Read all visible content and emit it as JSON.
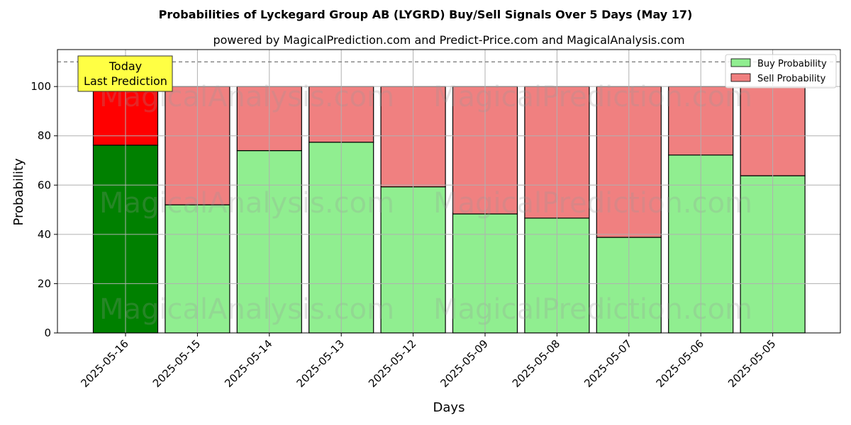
{
  "chart_data": {
    "type": "bar",
    "stacked": true,
    "title": "Probabilities of Lyckegard Group AB (LYGRD) Buy/Sell Signals Over 5 Days (May 17)",
    "subtitle": "powered by MagicalPrediction.com and Predict-Price.com and MagicalAnalysis.com",
    "xlabel": "Days",
    "ylabel": "Probability",
    "ylim": [
      0,
      115
    ],
    "yticks": [
      0,
      20,
      40,
      60,
      80,
      100
    ],
    "threshold_line": 110,
    "grid": true,
    "legend_position": "top-right",
    "categories": [
      "2025-05-16",
      "2025-05-15",
      "2025-05-14",
      "2025-05-13",
      "2025-05-12",
      "2025-05-09",
      "2025-05-08",
      "2025-05-07",
      "2025-05-06",
      "2025-05-05"
    ],
    "series": [
      {
        "name": "Buy Probability",
        "color": "#90ee90",
        "highlight_color": "#008000",
        "values": [
          76.2,
          52.0,
          74.0,
          77.4,
          59.3,
          48.3,
          46.6,
          38.8,
          72.2,
          63.8
        ]
      },
      {
        "name": "Sell Probability",
        "color": "#f08080",
        "highlight_color": "#ff0000",
        "values": [
          23.8,
          48.0,
          26.0,
          22.6,
          40.7,
          51.7,
          53.4,
          61.2,
          27.8,
          36.2
        ]
      }
    ],
    "annotation": {
      "lines": [
        "Today",
        "Last Prediction"
      ],
      "category_index": 0,
      "background": "#ffff44"
    },
    "watermarks": [
      "MagicalAnalysis.com",
      "MagicalPrediction.com"
    ]
  }
}
